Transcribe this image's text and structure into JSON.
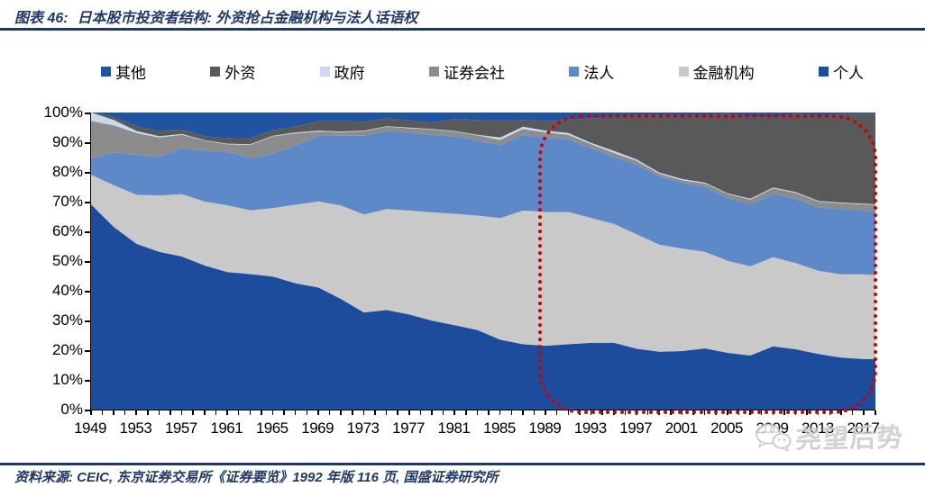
{
  "header": {
    "title_prefix": "图表 46:",
    "title_main": "日本股市投资者结构: 外资抢占金融机构与法人话语权"
  },
  "footer": {
    "source": "资料来源: CEIC, 东京证券交易所《证券要览》1992 年版 116 页, 国盛证券研究所"
  },
  "watermark": {
    "text": "尧望后势",
    "icon": "wechat-chat-bubbles-icon"
  },
  "colors": {
    "accent_navy": "#1F3864",
    "highlight_red": "#CC0000",
    "axis_black": "#000000"
  },
  "chart_data": {
    "type": "area",
    "stacked": true,
    "unit": "%",
    "title": "日本股市投资者结构",
    "xlabel": "",
    "ylabel": "",
    "ylim": [
      0,
      100
    ],
    "grid": false,
    "legend_position": "top",
    "ytick_labels": [
      "0%",
      "10%",
      "20%",
      "30%",
      "40%",
      "50%",
      "60%",
      "70%",
      "80%",
      "90%",
      "100%"
    ],
    "xtick_labels": [
      1949,
      1953,
      1957,
      1961,
      1965,
      1969,
      1973,
      1977,
      1981,
      1985,
      1989,
      1993,
      1997,
      2001,
      2005,
      2009,
      2013,
      2017
    ],
    "x": [
      1949,
      1951,
      1953,
      1955,
      1957,
      1959,
      1961,
      1963,
      1965,
      1967,
      1969,
      1971,
      1973,
      1975,
      1977,
      1979,
      1981,
      1983,
      1985,
      1987,
      1989,
      1991,
      1993,
      1995,
      1997,
      1999,
      2001,
      2003,
      2005,
      2007,
      2009,
      2011,
      2013,
      2015,
      2017,
      2018
    ],
    "series": [
      {
        "key": "individual",
        "name": "个人",
        "color": "#1E4C9C",
        "values": [
          69.1,
          61.5,
          55.8,
          53.1,
          51.5,
          48.5,
          46.3,
          45.6,
          44.8,
          42.5,
          41.1,
          37.2,
          32.7,
          33.5,
          32.0,
          29.9,
          28.4,
          26.8,
          23.5,
          22.0,
          21.5,
          22.0,
          22.5,
          22.5,
          20.5,
          19.5,
          19.7,
          20.6,
          19.1,
          18.2,
          21.3,
          20.3,
          18.7,
          17.5,
          17.0,
          17.0
        ]
      },
      {
        "key": "financial",
        "name": "金融机构",
        "color": "#C9C9C9",
        "values": [
          9.9,
          14.0,
          16.5,
          19.0,
          21.0,
          21.5,
          22.5,
          21.5,
          23.0,
          26.5,
          29.0,
          31.5,
          33.0,
          34.0,
          35.0,
          36.5,
          37.5,
          38.5,
          41.0,
          45.0,
          45.0,
          44.5,
          42.0,
          40.0,
          38.5,
          36.0,
          34.5,
          32.5,
          31.0,
          30.0,
          30.0,
          29.0,
          28.0,
          28.0,
          28.5,
          28.3
        ]
      },
      {
        "key": "corporate",
        "name": "法人",
        "color": "#5E89C8",
        "values": [
          5.6,
          11.0,
          13.5,
          13.0,
          15.5,
          17.0,
          18.0,
          17.5,
          18.4,
          20.0,
          22.0,
          23.5,
          26.5,
          26.3,
          26.2,
          26.1,
          26.0,
          25.2,
          24.5,
          25.5,
          25.0,
          24.5,
          23.5,
          22.5,
          23.5,
          23.0,
          22.3,
          21.8,
          21.1,
          20.8,
          21.4,
          21.6,
          21.3,
          22.0,
          21.5,
          21.5
        ]
      },
      {
        "key": "securities",
        "name": "证券会社",
        "color": "#8C8C8C",
        "values": [
          12.6,
          9.2,
          7.3,
          6.5,
          4.5,
          3.5,
          2.5,
          4.5,
          5.8,
          4.0,
          1.5,
          1.2,
          1.5,
          1.4,
          1.5,
          1.8,
          1.7,
          1.8,
          1.8,
          2.0,
          1.8,
          1.5,
          1.3,
          1.4,
          1.2,
          0.9,
          0.7,
          1.2,
          1.4,
          1.7,
          1.8,
          2.0,
          2.0,
          2.0,
          2.1,
          2.1
        ]
      },
      {
        "key": "government",
        "name": "政府",
        "color": "#C9D9F0",
        "values": [
          2.8,
          1.8,
          0.7,
          0.4,
          0.3,
          0.2,
          0.2,
          0.2,
          0.2,
          0.3,
          0.3,
          0.2,
          0.2,
          0.2,
          0.2,
          0.2,
          0.2,
          0.2,
          0.8,
          0.7,
          0.6,
          0.6,
          0.5,
          0.7,
          0.5,
          0.4,
          0.4,
          0.3,
          0.2,
          0.3,
          0.3,
          0.3,
          0.2,
          0.2,
          0.2,
          0.2
        ]
      },
      {
        "key": "foreign",
        "name": "外资",
        "color": "#595959",
        "values": [
          0.0,
          1.0,
          1.7,
          1.7,
          1.5,
          1.3,
          1.8,
          2.1,
          1.8,
          2.0,
          3.2,
          3.5,
          3.0,
          2.6,
          2.5,
          2.1,
          4.0,
          5.0,
          5.7,
          2.3,
          3.3,
          4.5,
          8.2,
          11.4,
          14.8,
          19.2,
          21.2,
          22.6,
          26.7,
          27.5,
          23.5,
          26.3,
          28.5,
          29.8,
          30.2,
          30.4
        ]
      },
      {
        "key": "other",
        "name": "其他",
        "color": "#2153A3",
        "values": [
          0.0,
          1.5,
          4.5,
          6.3,
          5.7,
          8.0,
          8.7,
          8.6,
          6.0,
          4.7,
          2.9,
          2.9,
          3.1,
          2.0,
          2.6,
          3.4,
          2.2,
          2.5,
          2.7,
          2.5,
          2.8,
          2.4,
          2.0,
          1.5,
          1.0,
          1.0,
          1.2,
          1.0,
          0.5,
          1.5,
          1.7,
          0.5,
          1.3,
          0.5,
          0.5,
          0.5
        ]
      }
    ],
    "legend_order_displayed": [
      "其他",
      "外资",
      "政府",
      "证券会社",
      "法人",
      "金融机构",
      "个人"
    ],
    "annotation": {
      "type": "dotted-rounded-box",
      "color": "#CC0000",
      "x_range": [
        1989,
        2018
      ],
      "y_range": [
        0,
        100
      ]
    }
  }
}
